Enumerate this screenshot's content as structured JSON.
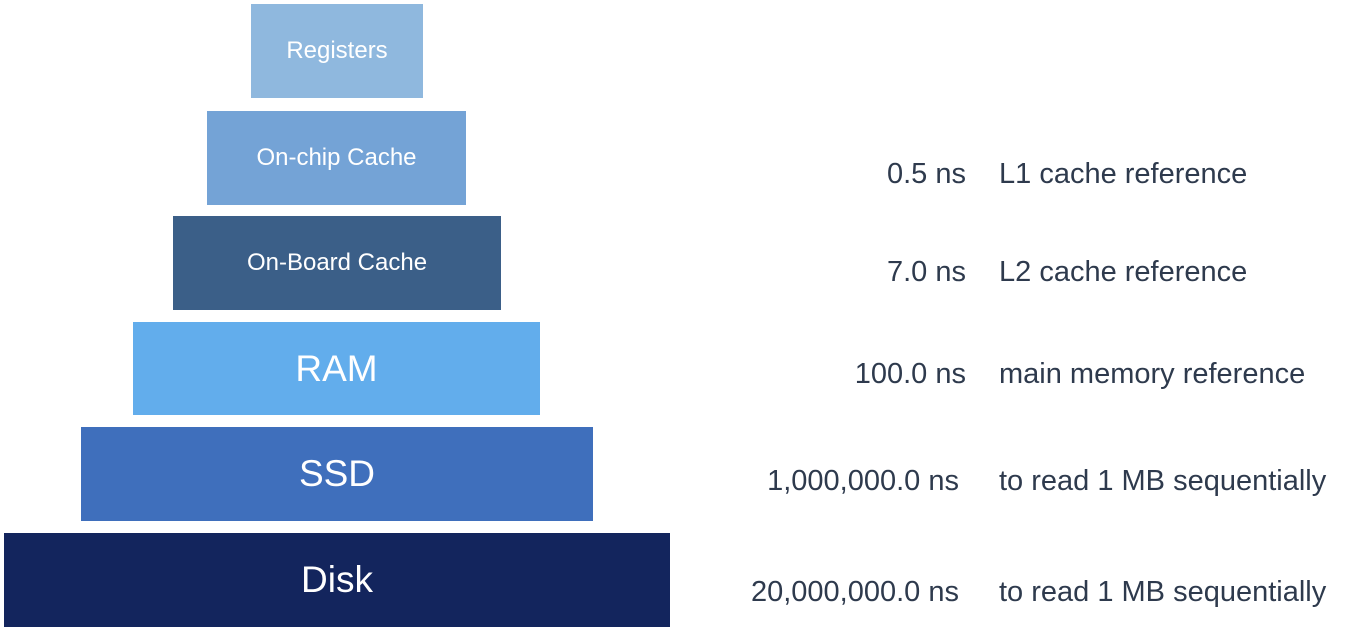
{
  "tiers": [
    {
      "label": "Registers",
      "color": "#8fb8de"
    },
    {
      "label": "On-chip Cache",
      "color": "#74a3d6"
    },
    {
      "label": "On-Board Cache",
      "color": "#3b5f88"
    },
    {
      "label": "RAM",
      "color": "#62adec"
    },
    {
      "label": "SSD",
      "color": "#3f6fbc"
    },
    {
      "label": "Disk",
      "color": "#13255d"
    }
  ],
  "latencies": [
    {
      "time": "0.5 ns",
      "description": "L1 cache reference"
    },
    {
      "time": "7.0 ns",
      "description": "L2 cache reference"
    },
    {
      "time": "100.0 ns",
      "description": "main memory reference"
    },
    {
      "time": "1,000,000.0 ns",
      "description": "to read 1 MB sequentially"
    },
    {
      "time": "20,000,000.0 ns",
      "description": "to read 1 MB sequentially"
    }
  ],
  "text_color": "#2e3a4d"
}
